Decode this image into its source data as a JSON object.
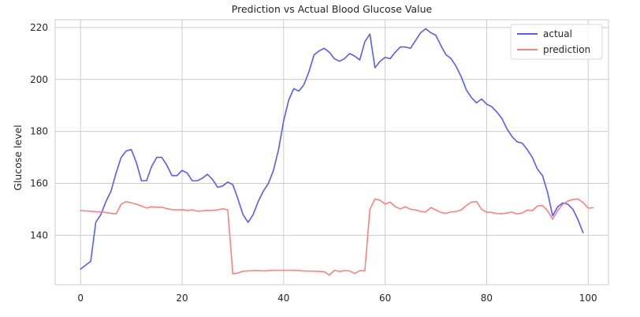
{
  "chart_data": {
    "type": "line",
    "title": "Prediction vs Actual Blood Glucose Value",
    "xlabel": "",
    "ylabel": "Glucose level",
    "xlim": [
      -5,
      104
    ],
    "ylim": [
      121,
      223
    ],
    "x_ticks": [
      0,
      20,
      40,
      60,
      80,
      100
    ],
    "y_ticks": [
      140,
      160,
      180,
      200,
      220
    ],
    "grid": true,
    "legend_position": "top-right",
    "series": [
      {
        "name": "actual",
        "color": "#5a5aff",
        "values": [
          127,
          128.5,
          130,
          145,
          148,
          153,
          157,
          164,
          170,
          172.5,
          173,
          168,
          161,
          161,
          166.5,
          170,
          170,
          167,
          163,
          163,
          165,
          164,
          161,
          161,
          162,
          163.5,
          161.5,
          158.5,
          159,
          160.5,
          159.5,
          154,
          148,
          145,
          148,
          153,
          157,
          160,
          165,
          173,
          184,
          192,
          196.5,
          195.5,
          198,
          203,
          209.5,
          211,
          212,
          210.5,
          208,
          207,
          208,
          210,
          209,
          207.5,
          214.5,
          217.5,
          204.5,
          207,
          208.5,
          208,
          210.5,
          212.5,
          212.5,
          212,
          215,
          218,
          219.5,
          218,
          217,
          213,
          209.5,
          208,
          205,
          201,
          196,
          193,
          191,
          192.5,
          190.5,
          189.5,
          187.5,
          185,
          181,
          178,
          176,
          175.5,
          173,
          170,
          165.5,
          163,
          156.5,
          147.5,
          151,
          152.5,
          152,
          150,
          146,
          141
        ]
      },
      {
        "name": "prediction",
        "color": "#ff8080",
        "values": [
          149.5,
          149.4,
          149.3,
          149.1,
          149,
          148.8,
          148.5,
          148.2,
          152,
          153,
          152.5,
          152,
          151.3,
          150.5,
          151,
          150.8,
          150.8,
          150.3,
          149.9,
          149.8,
          149.9,
          149.6,
          149.8,
          149.3,
          149.4,
          149.6,
          149.6,
          149.8,
          150.2,
          149.8,
          125.2,
          125.5,
          126.2,
          126.3,
          126.4,
          126.4,
          126.3,
          126.4,
          126.5,
          126.5,
          126.5,
          126.5,
          126.5,
          126.4,
          126.3,
          126.2,
          126.2,
          126.1,
          126,
          124.7,
          126.5,
          126.1,
          126.4,
          126.3,
          125.3,
          126.4,
          126.3,
          150,
          154,
          153.5,
          152,
          152.8,
          151,
          150.2,
          151,
          150,
          149.8,
          149.2,
          149,
          150.7,
          149.8,
          148.8,
          148.5,
          149,
          149.2,
          149.8,
          151.5,
          152.8,
          153,
          150,
          148.9,
          148.8,
          148.4,
          148.3,
          148.6,
          148.9,
          148.2,
          148.6,
          149.7,
          149.5,
          151.3,
          151.5,
          149.5,
          146.2,
          149.5,
          152,
          153.2,
          153.8,
          154,
          152.6,
          150.5,
          150.6
        ]
      }
    ]
  }
}
